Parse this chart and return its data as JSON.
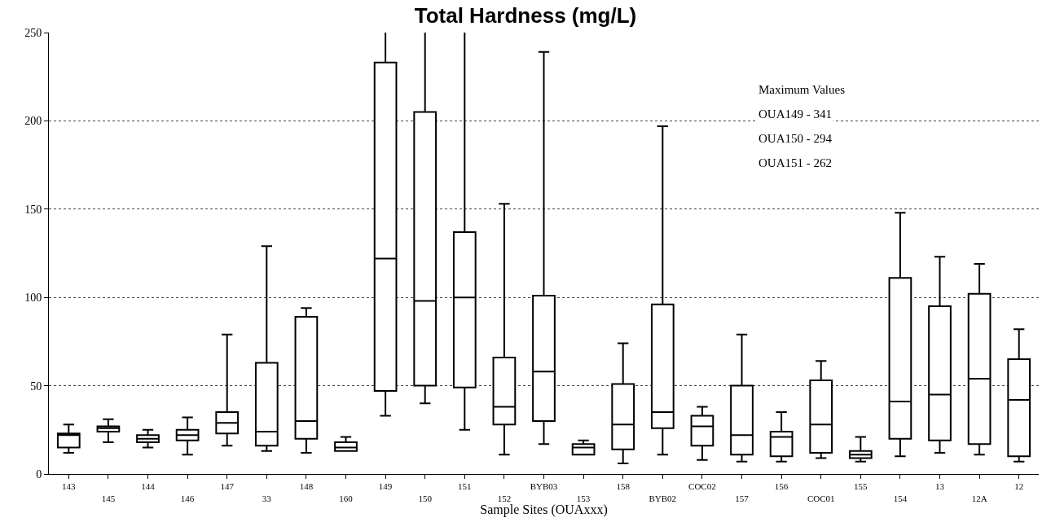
{
  "chart_data": {
    "type": "box",
    "title": "Total Hardness (mg/L)",
    "xlabel": "Sample Sites (OUAxxx)",
    "categories": [
      "143",
      "145",
      "144",
      "146",
      "147",
      "33",
      "148",
      "160",
      "149",
      "150",
      "151",
      "152",
      "BYB03",
      "153",
      "158",
      "BYB02",
      "COC02",
      "157",
      "156",
      "COC01",
      "155",
      "154",
      "13",
      "12A",
      "12"
    ],
    "boxes": [
      {
        "low": 12,
        "q1": 15,
        "median": 22,
        "q3": 23,
        "high": 28
      },
      {
        "low": 18,
        "q1": 24,
        "median": 26,
        "q3": 27,
        "high": 31
      },
      {
        "low": 15,
        "q1": 18,
        "median": 20,
        "q3": 22,
        "high": 25
      },
      {
        "low": 11,
        "q1": 19,
        "median": 22,
        "q3": 25,
        "high": 32
      },
      {
        "low": 16,
        "q1": 23,
        "median": 29,
        "q3": 35,
        "high": 79
      },
      {
        "low": 13,
        "q1": 16,
        "median": 24,
        "q3": 63,
        "high": 129
      },
      {
        "low": 12,
        "q1": 20,
        "median": 30,
        "q3": 89,
        "high": 94
      },
      {
        "low": 13,
        "q1": 13,
        "median": 15,
        "q3": 18,
        "high": 21
      },
      {
        "low": 33,
        "q1": 47,
        "median": 122,
        "q3": 233,
        "high": 341
      },
      {
        "low": 40,
        "q1": 50,
        "median": 98,
        "q3": 205,
        "high": 294
      },
      {
        "low": 25,
        "q1": 49,
        "median": 100,
        "q3": 137,
        "high": 262
      },
      {
        "low": 11,
        "q1": 28,
        "median": 38,
        "q3": 66,
        "high": 153
      },
      {
        "low": 17,
        "q1": 30,
        "median": 58,
        "q3": 101,
        "high": 239
      },
      {
        "low": 11,
        "q1": 11,
        "median": 15,
        "q3": 17,
        "high": 19
      },
      {
        "low": 6,
        "q1": 14,
        "median": 28,
        "q3": 51,
        "high": 74
      },
      {
        "low": 11,
        "q1": 26,
        "median": 35,
        "q3": 96,
        "high": 197
      },
      {
        "low": 8,
        "q1": 16,
        "median": 27,
        "q3": 33,
        "high": 38
      },
      {
        "low": 7,
        "q1": 11,
        "median": 22,
        "q3": 50,
        "high": 79
      },
      {
        "low": 7,
        "q1": 10,
        "median": 21,
        "q3": 24,
        "high": 35
      },
      {
        "low": 9,
        "q1": 12,
        "median": 28,
        "q3": 53,
        "high": 64
      },
      {
        "low": 7,
        "q1": 9,
        "median": 11,
        "q3": 13,
        "high": 21
      },
      {
        "low": 10,
        "q1": 20,
        "median": 41,
        "q3": 111,
        "high": 148
      },
      {
        "low": 12,
        "q1": 19,
        "median": 45,
        "q3": 95,
        "high": 123
      },
      {
        "low": 11,
        "q1": 17,
        "median": 54,
        "q3": 102,
        "high": 119
      },
      {
        "low": 7,
        "q1": 10,
        "median": 42,
        "q3": 65,
        "high": 82
      }
    ],
    "color": "#000000",
    "ylim": [
      0,
      250
    ],
    "yticks": [
      0,
      50,
      100,
      150,
      200,
      250
    ],
    "grid": "y",
    "annotations": [
      "Maximum Values",
      "OUA149 - 341",
      "OUA150 - 294",
      "OUA151 - 262"
    ]
  }
}
